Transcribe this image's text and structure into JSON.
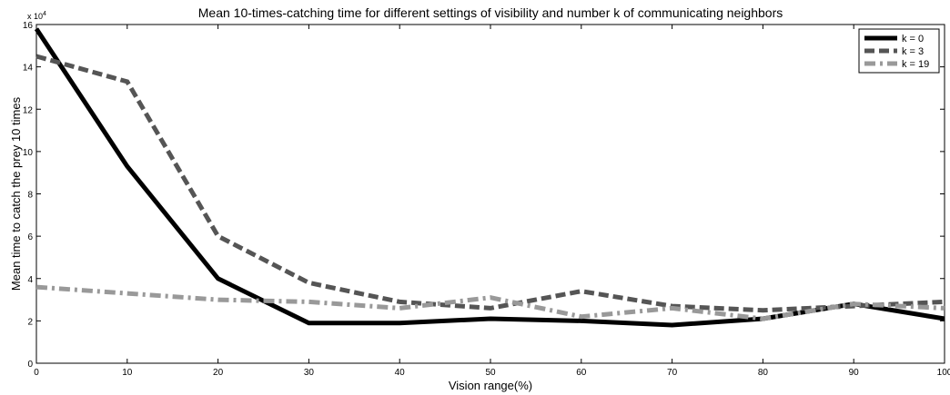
{
  "chart_data": {
    "type": "line",
    "title": "Mean 10-times-catching time for different settings of visibility and number k of communicating neighbors",
    "xlabel": "Vision range(%)",
    "ylabel": "Mean time to catch the prey 10 times",
    "y_multiplier": "x 10",
    "y_multiplier_exp": "4",
    "xlim": [
      0,
      100
    ],
    "ylim": [
      0,
      160000
    ],
    "x_ticks": [
      "0",
      "10",
      "20",
      "30",
      "40",
      "50",
      "60",
      "70",
      "80",
      "90",
      "100"
    ],
    "y_ticks": [
      "0",
      "2",
      "4",
      "6",
      "8",
      "10",
      "12",
      "14",
      "16"
    ],
    "x": [
      0,
      10,
      20,
      30,
      40,
      50,
      60,
      70,
      80,
      90,
      100
    ],
    "grid": false,
    "legend_position": "top-right",
    "series": [
      {
        "name": "k = 0",
        "color": "#000000",
        "style": "solid",
        "values": [
          158000,
          93000,
          40000,
          19000,
          19000,
          21000,
          20000,
          18000,
          21000,
          28000,
          21000
        ]
      },
      {
        "name": "k = 3",
        "color": "#555555",
        "style": "dashed",
        "values": [
          145000,
          133000,
          60000,
          38000,
          29000,
          26000,
          34000,
          27000,
          25000,
          27000,
          29000
        ]
      },
      {
        "name": "k = 19",
        "color": "#999999",
        "style": "dashdot",
        "values": [
          36000,
          33000,
          30000,
          29000,
          26000,
          31000,
          22000,
          26000,
          21000,
          28000,
          26000
        ]
      }
    ]
  }
}
